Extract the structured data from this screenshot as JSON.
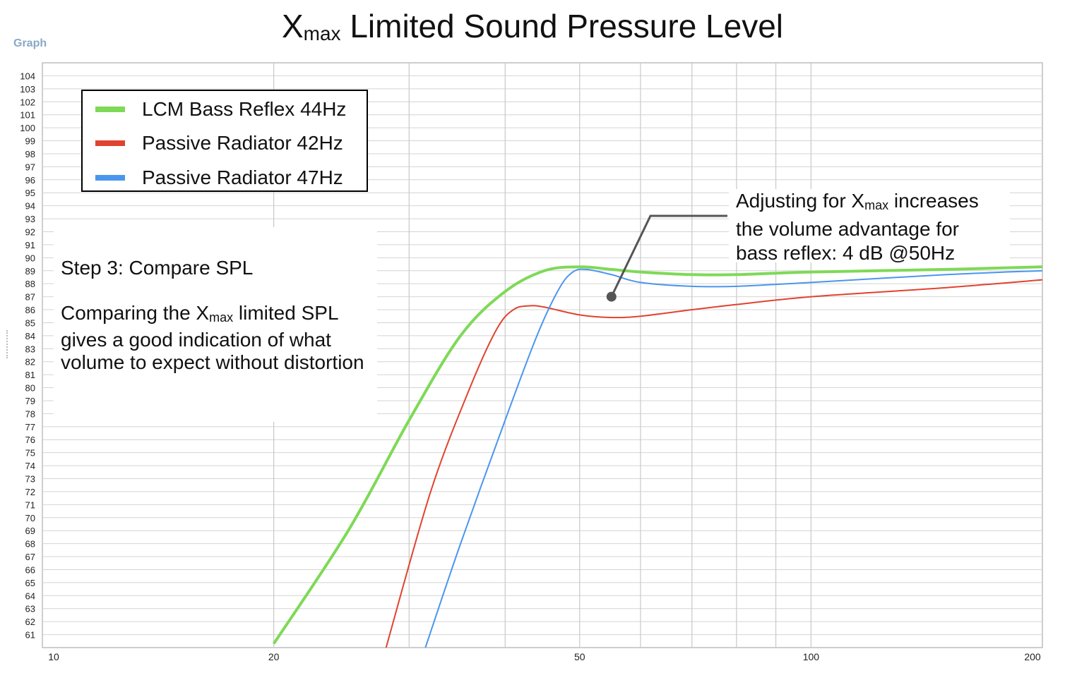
{
  "title_main": "X",
  "title_sub": "max",
  "title_rest": " Limited Sound Pressure Level",
  "graph_label": "Graph",
  "legend": [
    {
      "label": "LCM Bass Reflex 44Hz",
      "color": "#7ed957"
    },
    {
      "label": "Passive Radiator 42Hz",
      "color": "#e0432f"
    },
    {
      "label": "Passive Radiator 47Hz",
      "color": "#4a96ee"
    }
  ],
  "note_left": {
    "heading": "Step 3: Compare SPL",
    "line1_a": "Comparing the X",
    "line1_sub": "max",
    "line1_b": " limited SPL",
    "rest": "gives a good indication of what volume to expect without distortion"
  },
  "note_right": {
    "line1_a": "Adjusting for X",
    "line1_sub": "max",
    "line1_b": " increases",
    "line2": "the volume advantage for",
    "line3": "bass reflex: 4 dB @50Hz"
  },
  "chart_data": {
    "type": "line",
    "xscale": "log",
    "xlim": [
      10,
      200
    ],
    "ylim": [
      60,
      105
    ],
    "x_tick_labels": [
      "10",
      "20",
      "50",
      "100",
      "200"
    ],
    "y_tick_labels": [
      "61",
      "62",
      "63",
      "64",
      "65",
      "66",
      "67",
      "68",
      "69",
      "70",
      "71",
      "72",
      "73",
      "74",
      "75",
      "76",
      "77",
      "78",
      "79",
      "80",
      "81",
      "82",
      "83",
      "84",
      "85",
      "86",
      "87",
      "88",
      "89",
      "90",
      "91",
      "92",
      "93",
      "94",
      "95",
      "96",
      "97",
      "98",
      "99",
      "100",
      "101",
      "102",
      "103",
      "104"
    ],
    "grid": true,
    "legend_position": "top-left",
    "series": [
      {
        "name": "LCM Bass Reflex 44Hz",
        "color": "#7ed957",
        "width": 4,
        "points": [
          [
            20,
            60.3
          ],
          [
            25,
            69
          ],
          [
            30,
            77.5
          ],
          [
            35,
            84
          ],
          [
            40,
            87.4
          ],
          [
            45,
            89
          ],
          [
            50,
            89.3
          ],
          [
            55,
            89.1
          ],
          [
            60,
            88.9
          ],
          [
            70,
            88.7
          ],
          [
            80,
            88.7
          ],
          [
            100,
            88.9
          ],
          [
            150,
            89.1
          ],
          [
            200,
            89.3
          ]
        ]
      },
      {
        "name": "Passive Radiator 42Hz",
        "color": "#e0432f",
        "width": 2,
        "points": [
          [
            28,
            60
          ],
          [
            32,
            72
          ],
          [
            36,
            80
          ],
          [
            39,
            84.5
          ],
          [
            41,
            86
          ],
          [
            43,
            86.3
          ],
          [
            45,
            86.2
          ],
          [
            50,
            85.6
          ],
          [
            55,
            85.4
          ],
          [
            60,
            85.5
          ],
          [
            70,
            86
          ],
          [
            80,
            86.4
          ],
          [
            100,
            87
          ],
          [
            150,
            87.7
          ],
          [
            200,
            88.3
          ]
        ]
      },
      {
        "name": "Passive Radiator 47Hz",
        "color": "#4a96ee",
        "width": 2,
        "points": [
          [
            31.5,
            60
          ],
          [
            35,
            68
          ],
          [
            40,
            77.5
          ],
          [
            44,
            84
          ],
          [
            47,
            87.6
          ],
          [
            49,
            88.9
          ],
          [
            51,
            89.1
          ],
          [
            55,
            88.7
          ],
          [
            60,
            88.1
          ],
          [
            70,
            87.8
          ],
          [
            80,
            87.8
          ],
          [
            100,
            88.1
          ],
          [
            150,
            88.7
          ],
          [
            200,
            89
          ]
        ]
      }
    ],
    "annotation_marker": {
      "x": 55,
      "y": 87
    }
  }
}
